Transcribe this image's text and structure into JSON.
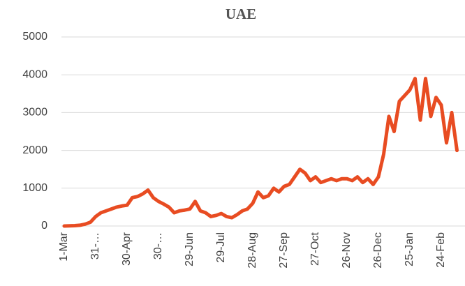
{
  "chart_data": {
    "type": "line",
    "title": "UAE",
    "categories": [
      "1-Mar",
      null,
      null,
      null,
      null,
      null,
      "31-…",
      null,
      null,
      null,
      null,
      null,
      "30-Apr",
      null,
      null,
      null,
      null,
      null,
      "30-…",
      null,
      null,
      null,
      null,
      null,
      "29-Jun",
      null,
      null,
      null,
      null,
      null,
      "29-Jul",
      null,
      null,
      null,
      null,
      null,
      "28-Aug",
      null,
      null,
      null,
      null,
      null,
      "27-Sep",
      null,
      null,
      null,
      null,
      null,
      "27-Oct",
      null,
      null,
      null,
      null,
      null,
      "26-Nov",
      null,
      null,
      null,
      null,
      null,
      "26-Dec",
      null,
      null,
      null,
      null,
      null,
      "25-Jan",
      null,
      null,
      null,
      null,
      null,
      "24-Feb",
      null,
      null,
      null
    ],
    "values": [
      0,
      5,
      10,
      20,
      50,
      100,
      250,
      350,
      400,
      450,
      500,
      530,
      550,
      750,
      780,
      850,
      950,
      750,
      650,
      580,
      500,
      350,
      400,
      420,
      450,
      650,
      400,
      350,
      250,
      280,
      330,
      250,
      220,
      300,
      400,
      450,
      600,
      900,
      750,
      800,
      1000,
      900,
      1050,
      1100,
      1300,
      1500,
      1400,
      1200,
      1300,
      1150,
      1200,
      1250,
      1200,
      1250,
      1250,
      1200,
      1300,
      1150,
      1250,
      1100,
      1300,
      1900,
      2900,
      2500,
      3300,
      3450,
      3600,
      3900,
      2800,
      3900,
      2900,
      3400,
      3200,
      2200,
      3000,
      2000
    ],
    "color": "#e84c22",
    "ylim": [
      0,
      5000
    ],
    "yticks": [
      0,
      1000,
      2000,
      3000,
      4000,
      5000
    ],
    "grid": true
  }
}
